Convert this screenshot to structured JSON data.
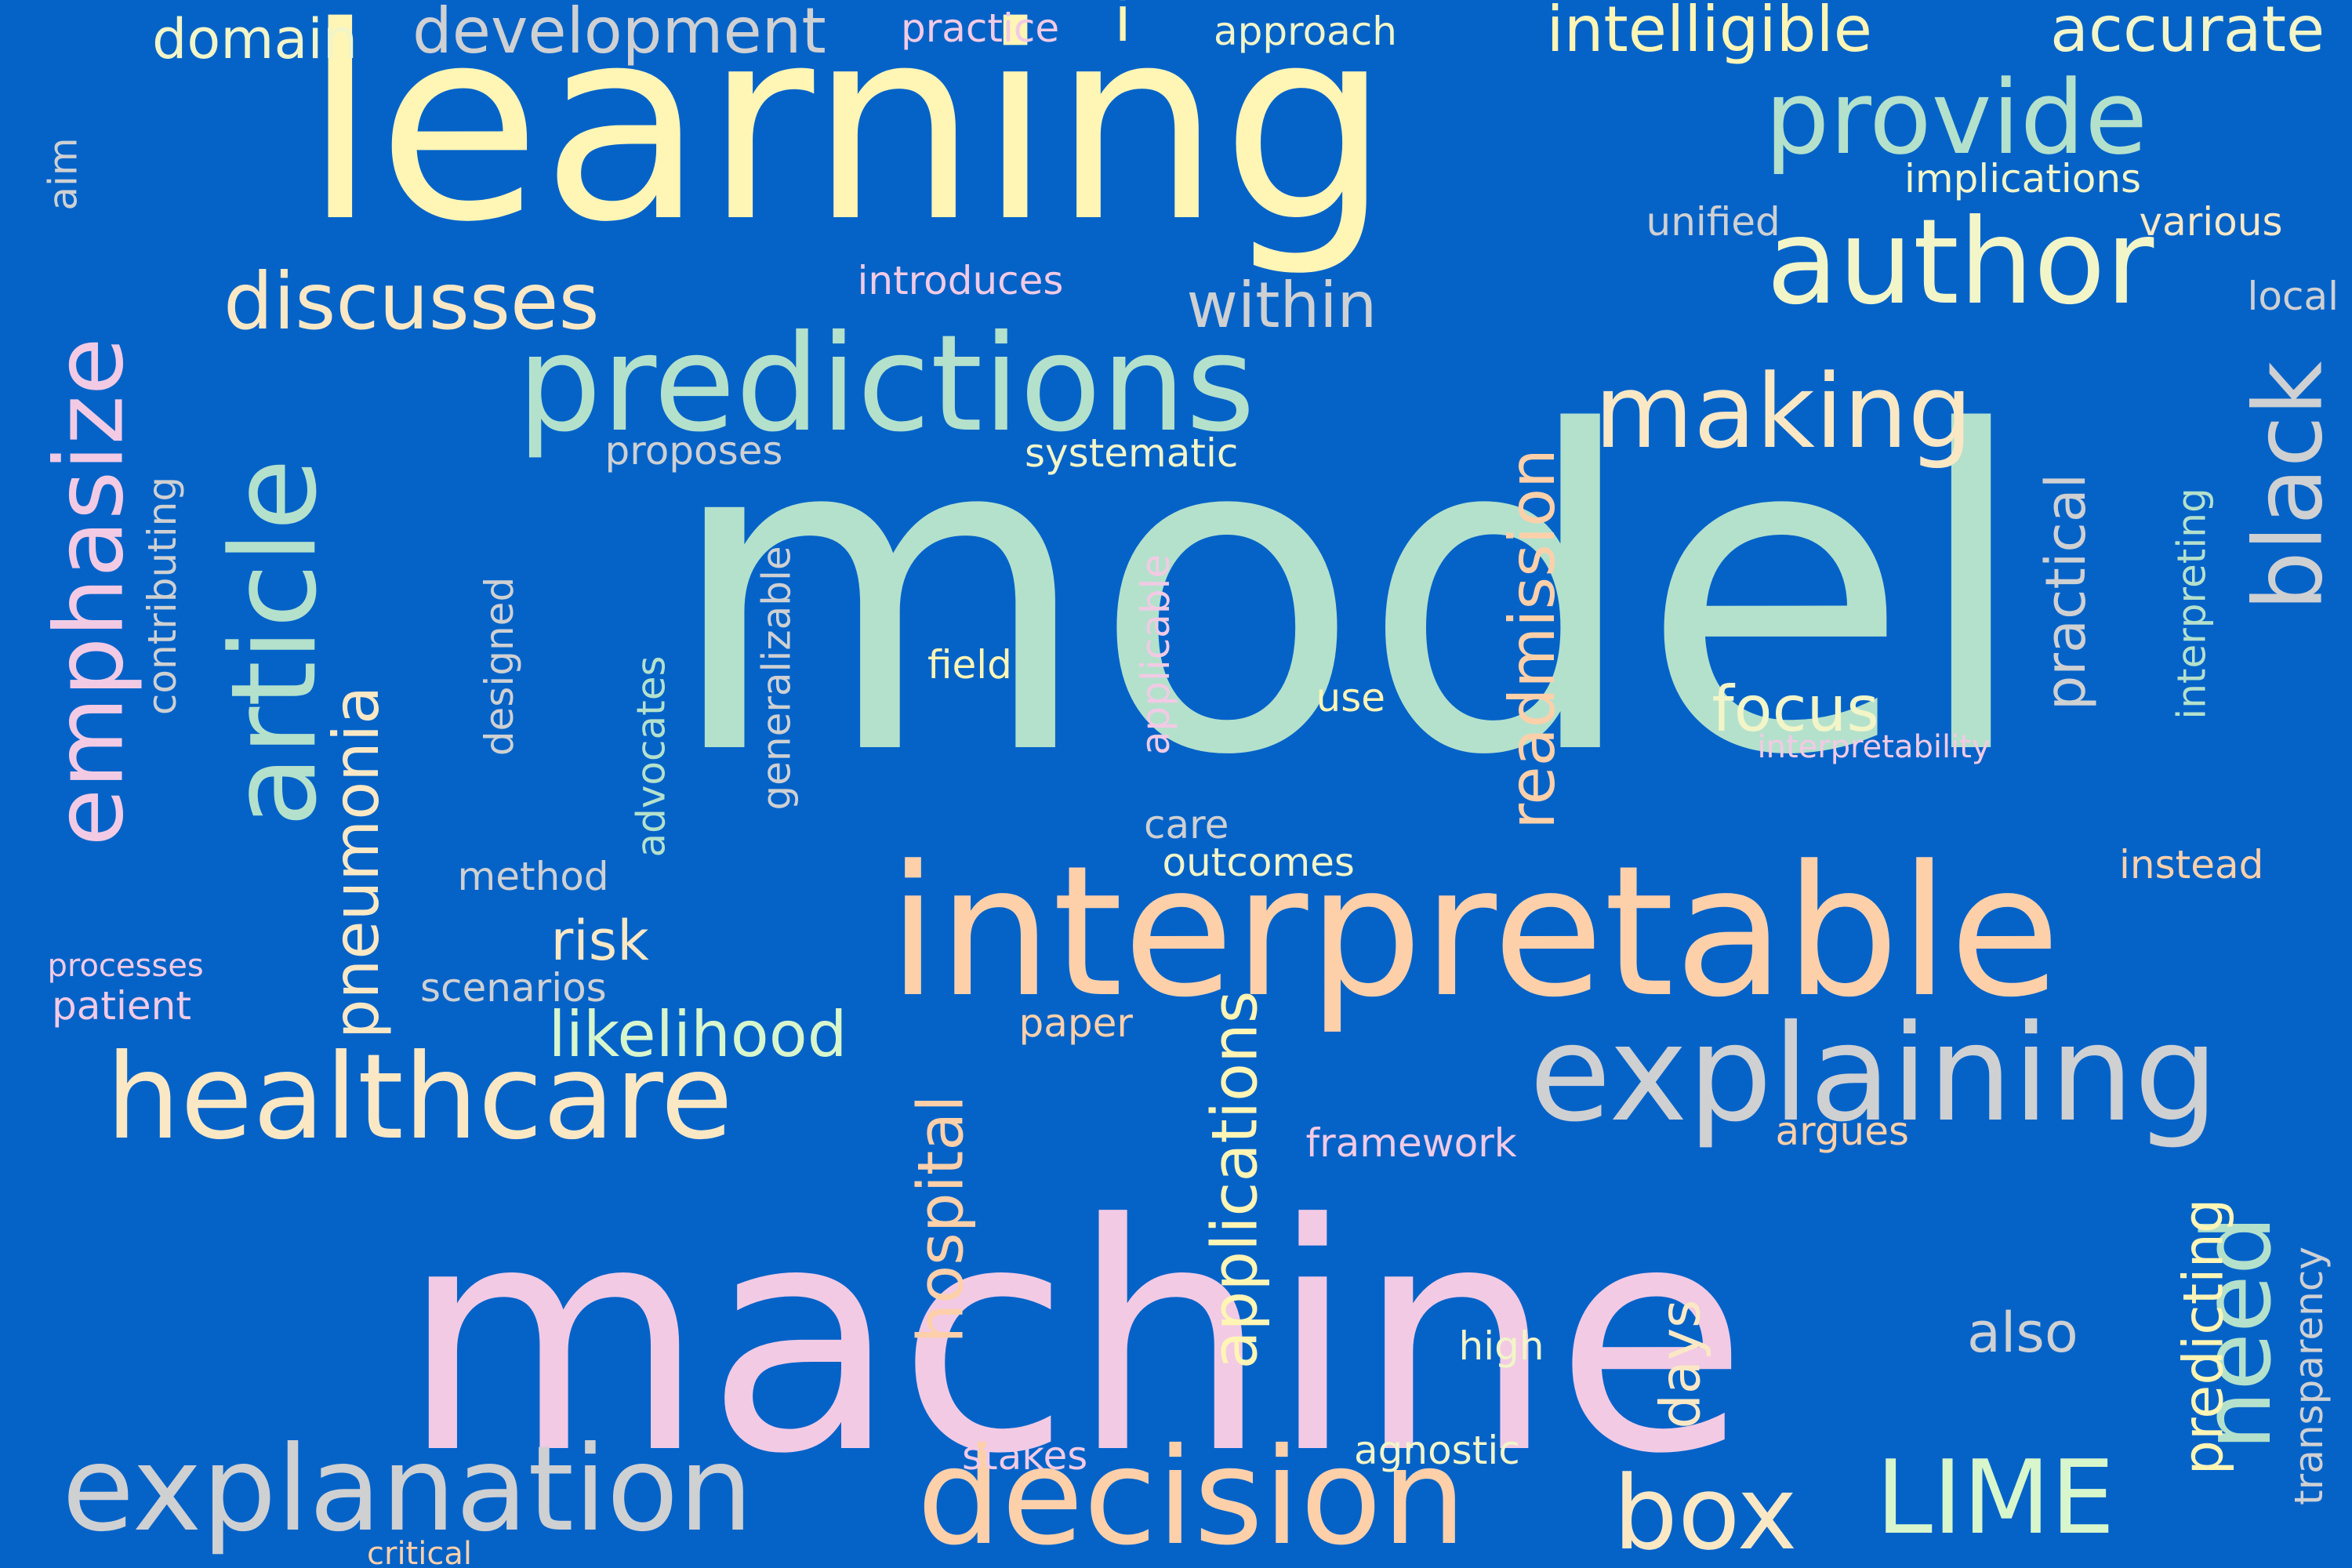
{
  "background": "#0563c8",
  "words": [
    {
      "text": "model",
      "color": "#b4e1cc"
    },
    {
      "text": "machine",
      "color": "#f2cae4"
    },
    {
      "text": "learning",
      "color": "#fff5b5"
    },
    {
      "text": "interpretable",
      "color": "#fdd0aa"
    },
    {
      "text": "predictions",
      "color": "#b4e1cc"
    },
    {
      "text": "explaining",
      "color": "#cfd0d2"
    },
    {
      "text": "decision",
      "color": "#fdd0aa"
    },
    {
      "text": "explanation",
      "color": "#cfd0d2"
    },
    {
      "text": "author",
      "color": "#f2f5c8"
    },
    {
      "text": "article",
      "color": "#b4e1cc"
    },
    {
      "text": "healthcare",
      "color": "#fae8c5"
    },
    {
      "text": "making",
      "color": "#fae8c5"
    },
    {
      "text": "LIME",
      "color": "#d8f6cc"
    },
    {
      "text": "box",
      "color": "#fae8c5"
    },
    {
      "text": "provide",
      "color": "#b4e1cc"
    },
    {
      "text": "emphasize",
      "color": "#f2cae4"
    },
    {
      "text": "discusses",
      "color": "#fae8c5"
    },
    {
      "text": "black",
      "color": "#cfd0d2"
    },
    {
      "text": "need",
      "color": "#b4e1cc"
    },
    {
      "text": "applications",
      "color": "#fff5b5"
    },
    {
      "text": "intelligible",
      "color": "#fff5b5"
    },
    {
      "text": "accurate",
      "color": "#f2f5c8"
    },
    {
      "text": "pneumonia",
      "color": "#fae8c5"
    },
    {
      "text": "development",
      "color": "#cfd0d2"
    },
    {
      "text": "readmission",
      "color": "#fdd0aa"
    },
    {
      "text": "hospital",
      "color": "#fdd0aa"
    },
    {
      "text": "focus",
      "color": "#f2f5c8"
    },
    {
      "text": "predicting",
      "color": "#fff5b5"
    },
    {
      "text": "practical",
      "color": "#cfd0d2"
    },
    {
      "text": "likelihood",
      "color": "#d8f6cc"
    },
    {
      "text": "within",
      "color": "#cfd0d2"
    },
    {
      "text": "domain",
      "color": "#f2f5c8"
    },
    {
      "text": "risk",
      "color": "#fae8c5"
    },
    {
      "text": "also",
      "color": "#cfd0d2"
    },
    {
      "text": "days",
      "color": "#fae8c5"
    },
    {
      "text": "transparency",
      "color": "#cfd0d2"
    },
    {
      "text": "contributing",
      "color": "#cfd0d2"
    },
    {
      "text": "interpreting",
      "color": "#b4e1cc"
    },
    {
      "text": "advocates",
      "color": "#b4e1cc"
    },
    {
      "text": "designed",
      "color": "#cfd0d2"
    },
    {
      "text": "generalizable",
      "color": "#cfd0d2"
    },
    {
      "text": "applicable",
      "color": "#f2cae4"
    },
    {
      "text": "implications",
      "color": "#f2f5c8"
    },
    {
      "text": "unified",
      "color": "#cfd0d2"
    },
    {
      "text": "various",
      "color": "#fae8c5"
    },
    {
      "text": "local",
      "color": "#cfd0d2"
    },
    {
      "text": "outcomes",
      "color": "#f2f5c8"
    },
    {
      "text": "instead",
      "color": "#fdd0aa"
    },
    {
      "text": "framework",
      "color": "#f2cae4"
    },
    {
      "text": "argues",
      "color": "#fdd0aa"
    },
    {
      "text": "approach",
      "color": "#f2f5c8"
    },
    {
      "text": "practice",
      "color": "#f2cae4"
    },
    {
      "text": "introduces",
      "color": "#f2cae4"
    },
    {
      "text": "proposes",
      "color": "#cfd0d2"
    },
    {
      "text": "systematic",
      "color": "#f2f5c8"
    },
    {
      "text": "scenarios",
      "color": "#cfd0d2"
    },
    {
      "text": "method",
      "color": "#cfd0d2"
    },
    {
      "text": "field",
      "color": "#fff5b5"
    },
    {
      "text": "use",
      "color": "#fff5b5"
    },
    {
      "text": "care",
      "color": "#cfd0d2"
    },
    {
      "text": "high",
      "color": "#f2f5c8"
    },
    {
      "text": "agnostic",
      "color": "#f2f5c8"
    },
    {
      "text": "stakes",
      "color": "#f2cae4"
    },
    {
      "text": "paper",
      "color": "#fdd0aa"
    },
    {
      "text": "patient",
      "color": "#f2cae4"
    },
    {
      "text": "processes",
      "color": "#f2cae4"
    },
    {
      "text": "critical",
      "color": "#fdd0aa"
    },
    {
      "text": "interpretability",
      "color": "#f2cae4"
    },
    {
      "text": "aim",
      "color": "#cfd0d2"
    },
    {
      "text": "i",
      "color": "#fff5b5"
    }
  ]
}
